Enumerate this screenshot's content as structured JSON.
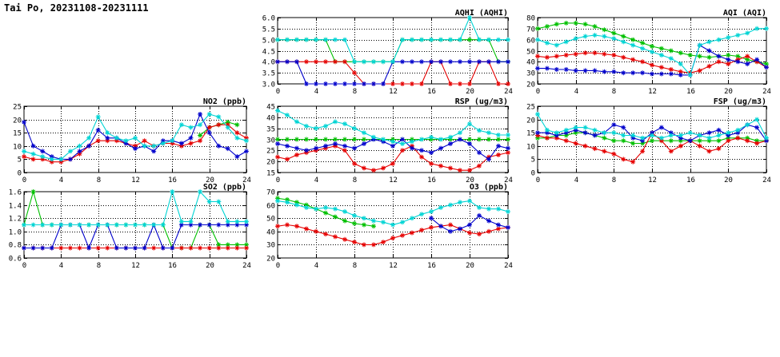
{
  "page_title": "Tai Po, 20231108-20231111",
  "colors": {
    "blue": "#0000cc",
    "red": "#e60000",
    "green": "#00c000",
    "cyan": "#00d4d4"
  },
  "chart_data": [
    {
      "id": "aqhi",
      "type": "line",
      "title": "AQHI (AQHI)",
      "xlim": [
        0,
        24
      ],
      "ylim": [
        3,
        6
      ],
      "grid": true,
      "legend": "none",
      "x_ticks": [
        0,
        4,
        8,
        12,
        16,
        20,
        24
      ],
      "x_tick_labels": [
        "0",
        "4",
        "8",
        "12",
        "16",
        "20",
        "24"
      ],
      "y_ticks": [
        3,
        3.5,
        4,
        4.5,
        5,
        5.5,
        6
      ],
      "y_tick_labels": [
        "3.0",
        "3.5",
        "4.0",
        "4.5",
        "5.0",
        "5.5",
        "6.0"
      ],
      "series": [
        {
          "name": "green",
          "color": "green",
          "values": [
            5,
            5,
            5,
            5,
            5,
            5,
            4,
            4,
            4,
            4,
            4,
            4,
            4,
            5,
            5,
            5,
            5,
            5,
            5,
            5,
            5,
            5,
            5,
            4,
            4
          ]
        },
        {
          "name": "red",
          "color": "red",
          "values": [
            4,
            4,
            4,
            4,
            4,
            4,
            4,
            4,
            3.5,
            3,
            3,
            3,
            3,
            3,
            3,
            3,
            4,
            4,
            3,
            3,
            3,
            4,
            4,
            3,
            3
          ]
        },
        {
          "name": "blue",
          "color": "blue",
          "values": [
            4,
            4,
            4,
            3,
            3,
            3,
            3,
            3,
            3,
            3,
            3,
            3,
            4,
            4,
            4,
            4,
            4,
            4,
            4,
            4,
            4,
            4,
            4,
            4,
            4
          ]
        },
        {
          "name": "cyan",
          "color": "cyan",
          "values": [
            5,
            5,
            5,
            5,
            5,
            5,
            5,
            5,
            4,
            4,
            4,
            4,
            4,
            5,
            5,
            5,
            5,
            5,
            5,
            5,
            6,
            5,
            5,
            5,
            5
          ]
        }
      ]
    },
    {
      "id": "aqi",
      "type": "line",
      "title": "AQI (AQI)",
      "xlim": [
        0,
        24
      ],
      "ylim": [
        20,
        80
      ],
      "grid": true,
      "legend": "none",
      "x_ticks": [
        0,
        4,
        8,
        12,
        16,
        20,
        24
      ],
      "x_tick_labels": [
        "0",
        "4",
        "8",
        "12",
        "16",
        "20",
        "24"
      ],
      "y_ticks": [
        20,
        30,
        40,
        50,
        60,
        70,
        80
      ],
      "y_tick_labels": [
        "20",
        "30",
        "40",
        "50",
        "60",
        "70",
        "80"
      ],
      "series": [
        {
          "name": "green",
          "color": "green",
          "values": [
            70,
            72,
            74,
            75,
            75,
            74,
            72,
            69,
            66,
            63,
            60,
            57,
            54,
            52,
            50,
            48,
            46,
            45,
            44,
            45,
            46,
            45,
            42,
            40,
            38
          ]
        },
        {
          "name": "red",
          "color": "red",
          "values": [
            45,
            44,
            45,
            46,
            47,
            48,
            48,
            47,
            46,
            44,
            42,
            40,
            37,
            35,
            33,
            31,
            30,
            32,
            36,
            40,
            38,
            42,
            45,
            40,
            35
          ]
        },
        {
          "name": "blue",
          "color": "blue",
          "values": [
            34,
            34,
            33,
            33,
            32,
            32,
            32,
            31,
            31,
            30,
            30,
            30,
            29,
            29,
            29,
            28,
            28,
            55,
            50,
            45,
            42,
            40,
            38,
            42,
            35
          ]
        },
        {
          "name": "cyan",
          "color": "cyan",
          "values": [
            60,
            57,
            55,
            58,
            61,
            63,
            64,
            63,
            61,
            58,
            55,
            52,
            49,
            46,
            43,
            38,
            28,
            55,
            58,
            60,
            62,
            64,
            66,
            70,
            70
          ]
        }
      ]
    },
    {
      "id": "no2",
      "type": "line",
      "title": "NO2 (ppb)",
      "xlim": [
        0,
        24
      ],
      "ylim": [
        0,
        25
      ],
      "grid": true,
      "legend": "none",
      "x_ticks": [
        0,
        4,
        8,
        12,
        16,
        20,
        24
      ],
      "x_tick_labels": [
        "0",
        "4",
        "8",
        "12",
        "16",
        "20",
        "24"
      ],
      "y_ticks": [
        0,
        5,
        10,
        15,
        20,
        25
      ],
      "y_tick_labels": [
        "0",
        "5",
        "10",
        "15",
        "20",
        "25"
      ],
      "series": [
        {
          "name": "green",
          "color": "green",
          "values": [
            null,
            null,
            null,
            null,
            null,
            null,
            null,
            null,
            null,
            null,
            null,
            null,
            null,
            null,
            null,
            null,
            null,
            null,
            null,
            14,
            17,
            18,
            19,
            18,
            null
          ]
        },
        {
          "name": "red",
          "color": "red",
          "values": [
            6,
            5,
            5,
            4,
            4,
            5,
            7,
            10,
            12,
            12,
            12,
            11,
            10,
            12,
            10,
            11,
            11,
            10,
            11,
            12,
            17,
            18,
            18,
            15,
            13
          ]
        },
        {
          "name": "blue",
          "color": "blue",
          "values": [
            19,
            10,
            8,
            6,
            5,
            5,
            8,
            10,
            16,
            13,
            13,
            11,
            9,
            10,
            8,
            12,
            12,
            11,
            13,
            22,
            15,
            10,
            9,
            6,
            8
          ]
        },
        {
          "name": "cyan",
          "color": "cyan",
          "values": [
            8,
            7,
            6,
            5,
            5,
            8,
            10,
            13,
            21,
            15,
            13,
            12,
            13,
            10,
            10,
            11,
            12,
            18,
            17,
            18,
            22,
            21,
            17,
            13,
            12
          ]
        }
      ]
    },
    {
      "id": "rsp",
      "type": "line",
      "title": "RSP (ug/m3)",
      "xlim": [
        0,
        24
      ],
      "ylim": [
        15,
        45
      ],
      "grid": true,
      "legend": "none",
      "x_ticks": [
        0,
        4,
        8,
        12,
        16,
        20,
        24
      ],
      "x_tick_labels": [
        "0",
        "4",
        "8",
        "12",
        "16",
        "20",
        "24"
      ],
      "y_ticks": [
        15,
        20,
        25,
        30,
        35,
        40,
        45
      ],
      "y_tick_labels": [
        "15",
        "20",
        "25",
        "30",
        "35",
        "40",
        "45"
      ],
      "series": [
        {
          "name": "green",
          "color": "green",
          "values": [
            30,
            30,
            30,
            30,
            30,
            30,
            30,
            30,
            30,
            30,
            30,
            30,
            30,
            30,
            30,
            30,
            30,
            30,
            30,
            30,
            30,
            30,
            30,
            30,
            30
          ]
        },
        {
          "name": "red",
          "color": "red",
          "values": [
            22,
            21,
            23,
            24,
            25,
            26,
            27,
            25,
            19,
            17,
            16,
            17,
            19,
            25,
            27,
            22,
            19,
            18,
            17,
            16,
            16,
            18,
            22,
            23,
            24
          ]
        },
        {
          "name": "blue",
          "color": "blue",
          "values": [
            28,
            27,
            26,
            25,
            26,
            27,
            28,
            27,
            26,
            28,
            30,
            29,
            27,
            30,
            26,
            25,
            24,
            26,
            28,
            30,
            28,
            24,
            21,
            27,
            26
          ]
        },
        {
          "name": "cyan",
          "color": "cyan",
          "values": [
            43,
            41,
            38,
            36,
            35,
            36,
            38,
            37,
            35,
            33,
            31,
            30,
            29,
            28,
            29,
            30,
            31,
            30,
            31,
            33,
            37,
            34,
            33,
            32,
            32
          ]
        }
      ]
    },
    {
      "id": "fsp",
      "type": "line",
      "title": "FSP (ug/m3)",
      "xlim": [
        0,
        24
      ],
      "ylim": [
        0,
        25
      ],
      "grid": true,
      "legend": "none",
      "x_ticks": [
        0,
        4,
        8,
        12,
        16,
        20,
        24
      ],
      "x_tick_labels": [
        "0",
        "4",
        "8",
        "12",
        "16",
        "20",
        "24"
      ],
      "y_ticks": [
        0,
        5,
        10,
        15,
        20,
        25
      ],
      "y_tick_labels": [
        "0",
        "5",
        "10",
        "15",
        "20",
        "25"
      ],
      "series": [
        {
          "name": "green",
          "color": "green",
          "values": [
            13,
            13,
            14,
            14,
            15,
            15,
            14,
            13,
            12,
            12,
            11,
            11,
            12,
            12,
            12,
            12,
            12,
            12,
            12,
            12,
            13,
            13,
            13,
            12,
            12
          ]
        },
        {
          "name": "red",
          "color": "red",
          "values": [
            14,
            13,
            13,
            12,
            11,
            10,
            9,
            8,
            7,
            5,
            4,
            8,
            15,
            12,
            8,
            10,
            12,
            10,
            8,
            9,
            12,
            13,
            12,
            11,
            12
          ]
        },
        {
          "name": "blue",
          "color": "blue",
          "values": [
            15,
            15,
            14,
            15,
            16,
            15,
            14,
            15,
            18,
            17,
            13,
            12,
            15,
            17,
            15,
            13,
            12,
            14,
            15,
            16,
            14,
            15,
            18,
            17,
            12
          ]
        },
        {
          "name": "cyan",
          "color": "cyan",
          "values": [
            22,
            16,
            15,
            16,
            17,
            17,
            16,
            15,
            15,
            14,
            14,
            13,
            14,
            13,
            14,
            14,
            15,
            14,
            13,
            14,
            15,
            16,
            18,
            20,
            13
          ]
        }
      ]
    },
    {
      "id": "so2",
      "type": "line",
      "title": "SO2 (ppb)",
      "xlim": [
        0,
        24
      ],
      "ylim": [
        0.6,
        1.6
      ],
      "grid": true,
      "legend": "none",
      "x_ticks": [
        0,
        4,
        8,
        12,
        16,
        20,
        24
      ],
      "x_tick_labels": [
        "0",
        "4",
        "8",
        "12",
        "16",
        "20",
        "24"
      ],
      "y_ticks": [
        0.6,
        0.8,
        1.0,
        1.2,
        1.4,
        1.6
      ],
      "y_tick_labels": [
        "0.6",
        "0.8",
        "1.0",
        "1.2",
        "1.4",
        "1.6"
      ],
      "series": [
        {
          "name": "green",
          "color": "green",
          "values": [
            1.1,
            1.6,
            1.1,
            1.1,
            1.1,
            1.1,
            1.1,
            1.1,
            1.1,
            1.1,
            1.1,
            1.1,
            1.1,
            1.1,
            1.1,
            1.1,
            0.75,
            0.75,
            0.75,
            1.1,
            1.1,
            0.8,
            0.8,
            0.8,
            0.8
          ]
        },
        {
          "name": "red",
          "color": "red",
          "values": [
            0.75,
            0.75,
            0.75,
            0.75,
            0.75,
            0.75,
            0.75,
            0.75,
            0.75,
            0.75,
            0.75,
            0.75,
            0.75,
            0.75,
            0.75,
            0.75,
            0.75,
            0.75,
            0.75,
            0.75,
            0.75,
            0.75,
            0.75,
            0.75,
            0.75
          ]
        },
        {
          "name": "blue",
          "color": "blue",
          "values": [
            0.75,
            0.75,
            0.75,
            0.75,
            1.1,
            1.1,
            1.1,
            0.75,
            1.1,
            1.1,
            0.75,
            0.75,
            0.75,
            0.75,
            1.1,
            0.75,
            0.75,
            1.1,
            1.1,
            1.1,
            1.1,
            1.1,
            1.1,
            1.1,
            1.1
          ]
        },
        {
          "name": "cyan",
          "color": "cyan",
          "values": [
            1.1,
            1.1,
            1.1,
            1.1,
            1.1,
            1.1,
            1.1,
            1.1,
            1.1,
            1.1,
            1.1,
            1.1,
            1.1,
            1.1,
            1.1,
            1.1,
            1.6,
            1.15,
            1.15,
            1.6,
            1.45,
            1.45,
            1.15,
            1.15,
            1.15
          ]
        }
      ]
    },
    {
      "id": "o3",
      "type": "line",
      "title": "O3 (ppb)",
      "xlim": [
        0,
        24
      ],
      "ylim": [
        20,
        70
      ],
      "grid": true,
      "legend": "none",
      "x_ticks": [
        0,
        4,
        8,
        12,
        16,
        20,
        24
      ],
      "x_tick_labels": [
        "0",
        "4",
        "8",
        "12",
        "16",
        "20",
        "24"
      ],
      "y_ticks": [
        20,
        30,
        40,
        50,
        60,
        70
      ],
      "y_tick_labels": [
        "20",
        "30",
        "40",
        "50",
        "60",
        "70"
      ],
      "series": [
        {
          "name": "green",
          "color": "green",
          "values": [
            65,
            64,
            62,
            60,
            57,
            54,
            51,
            48,
            46,
            45,
            44,
            null,
            null,
            null,
            null,
            null,
            null,
            null,
            null,
            null,
            null,
            null,
            null,
            null,
            null
          ]
        },
        {
          "name": "red",
          "color": "red",
          "values": [
            44,
            45,
            44,
            42,
            40,
            38,
            36,
            34,
            32,
            30,
            30,
            32,
            35,
            37,
            39,
            41,
            43,
            44,
            45,
            42,
            39,
            38,
            40,
            42,
            43
          ]
        },
        {
          "name": "blue",
          "color": "blue",
          "values": [
            null,
            null,
            null,
            null,
            null,
            null,
            null,
            null,
            null,
            null,
            null,
            null,
            null,
            null,
            null,
            null,
            50,
            44,
            40,
            42,
            45,
            52,
            48,
            45,
            43
          ]
        },
        {
          "name": "cyan",
          "color": "cyan",
          "values": [
            63,
            62,
            60,
            58,
            57,
            58,
            57,
            55,
            52,
            50,
            48,
            47,
            45,
            47,
            50,
            53,
            55,
            58,
            60,
            62,
            63,
            58,
            57,
            57,
            55
          ]
        }
      ]
    }
  ]
}
